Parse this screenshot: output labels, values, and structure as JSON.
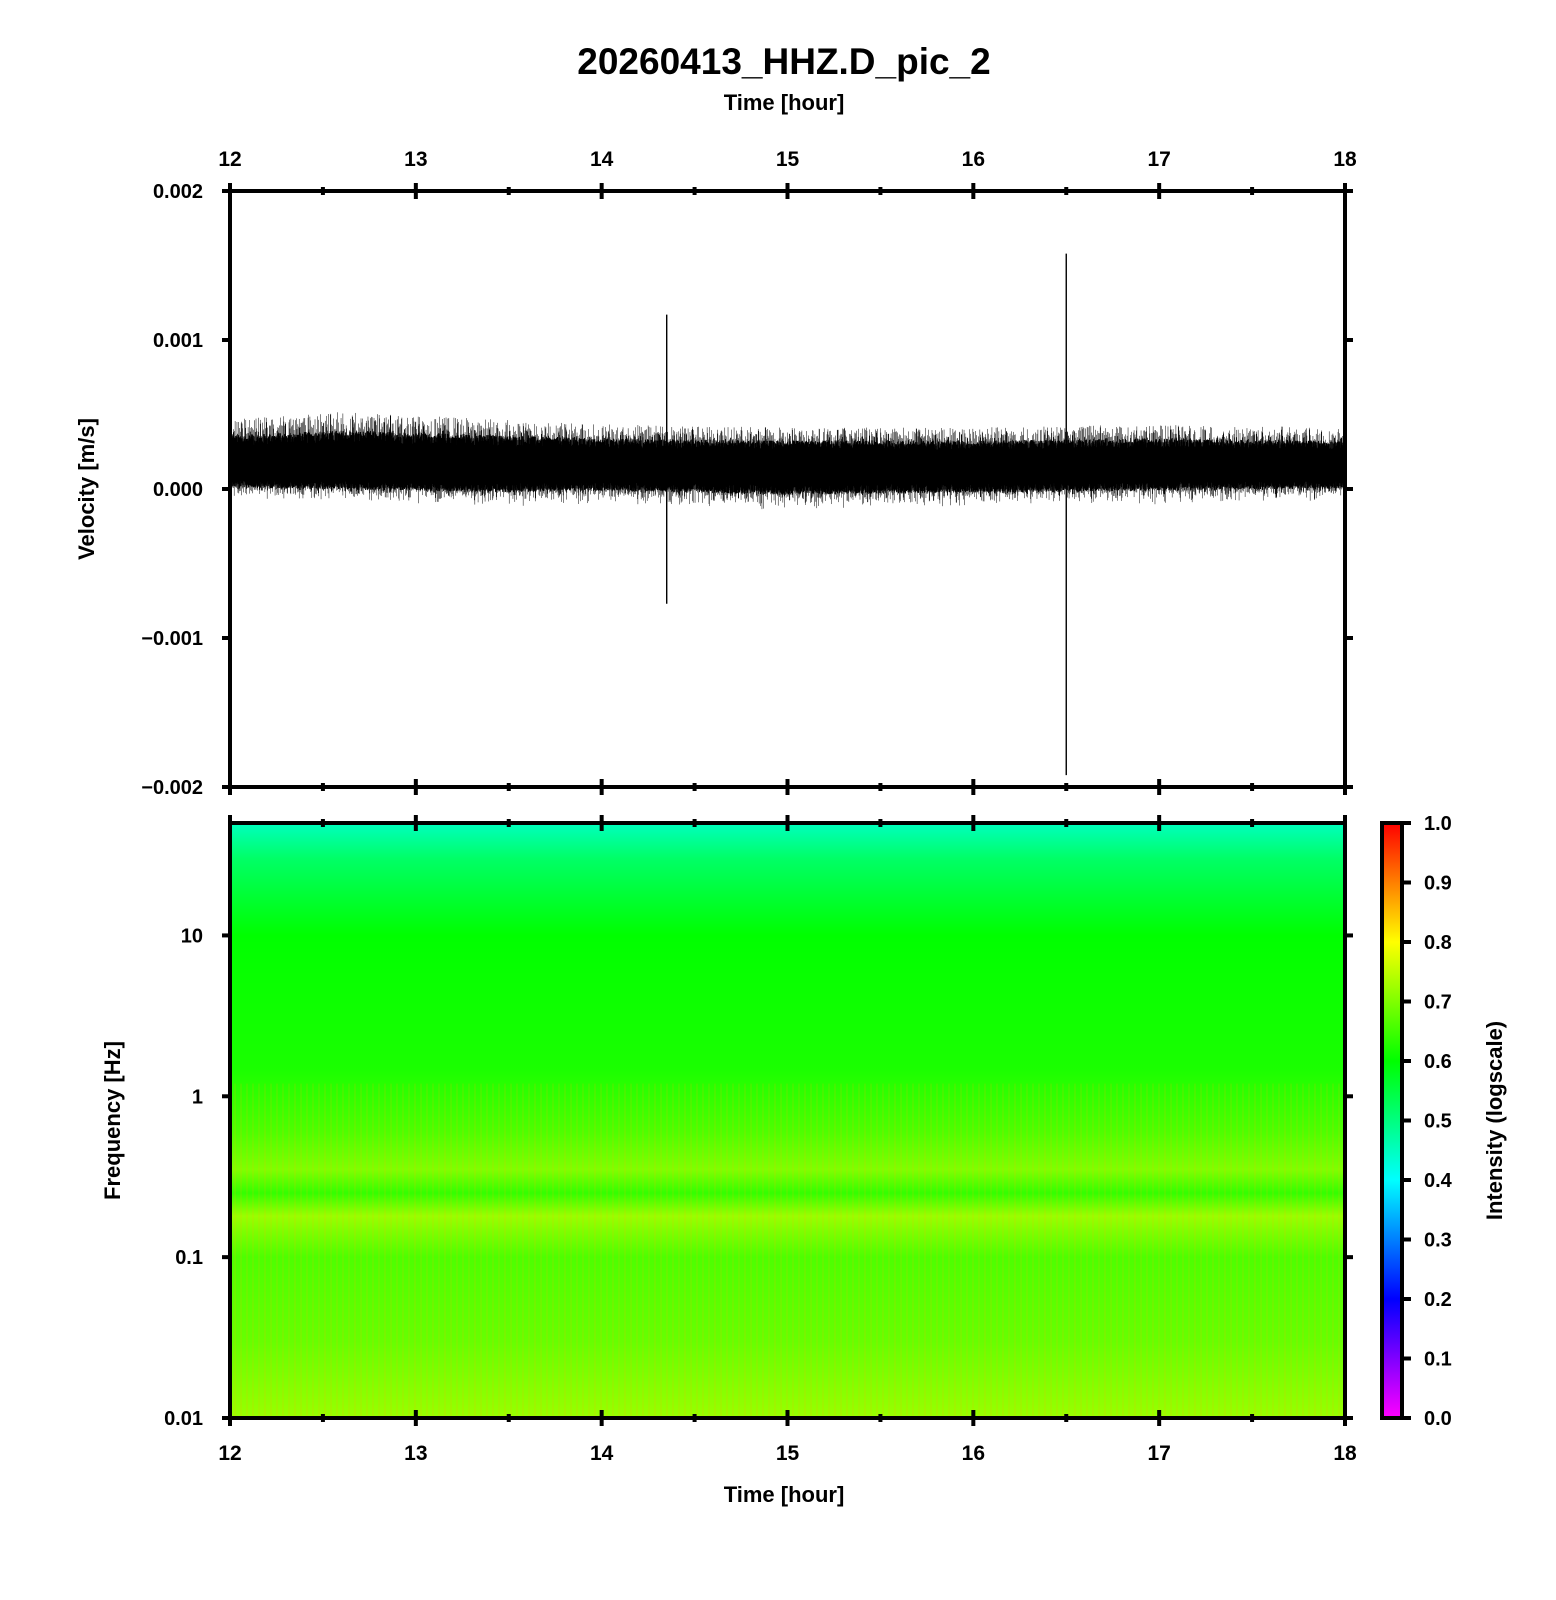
{
  "title": "20260413_HHZ.D_pic_2",
  "top_axis_label": "Time [hour]",
  "bottom_axis_label": "Time [hour]",
  "chart_data": [
    {
      "type": "line",
      "name": "seismogram",
      "ylabel": "Velocity [m/s]",
      "xlim": [
        12,
        18
      ],
      "ylim": [
        -0.002,
        0.002
      ],
      "x_ticks": [
        12,
        13,
        14,
        15,
        16,
        17,
        18
      ],
      "x_tick_labels": [
        "12",
        "13",
        "14",
        "15",
        "16",
        "17",
        "18"
      ],
      "y_ticks": [
        -0.002,
        -0.001,
        0.0,
        0.001,
        0.002
      ],
      "y_tick_labels": [
        "−0.002",
        "−0.001",
        "0.000",
        "0.001",
        "0.002"
      ],
      "baseline": 0.00015,
      "noise_envelope": [
        {
          "x": 12.0,
          "upper": 0.00045,
          "lower": -5e-05
        },
        {
          "x": 12.6,
          "upper": 0.0005,
          "lower": -7e-05
        },
        {
          "x": 13.5,
          "upper": 0.00045,
          "lower": -0.0001
        },
        {
          "x": 14.0,
          "upper": 0.00042,
          "lower": -8e-05
        },
        {
          "x": 15.0,
          "upper": 0.0004,
          "lower": -0.00012
        },
        {
          "x": 16.0,
          "upper": 0.0004,
          "lower": -0.0001
        },
        {
          "x": 17.0,
          "upper": 0.00042,
          "lower": -8e-05
        },
        {
          "x": 18.0,
          "upper": 0.0004,
          "lower": -6e-05
        }
      ],
      "spikes": [
        {
          "x": 14.35,
          "max": 0.00117,
          "min": -0.00077
        },
        {
          "x": 16.5,
          "max": 0.00158,
          "min": -0.00192
        }
      ]
    },
    {
      "type": "heatmap",
      "name": "spectrogram",
      "ylabel": "Frequency [Hz]",
      "xlabel": "Time [hour]",
      "xlim": [
        12,
        18
      ],
      "ylim": [
        0.01,
        50
      ],
      "y_scale": "log",
      "x_ticks": [
        12,
        13,
        14,
        15,
        16,
        17,
        18
      ],
      "x_tick_labels": [
        "12",
        "13",
        "14",
        "15",
        "16",
        "17",
        "18"
      ],
      "y_ticks": [
        0.01,
        0.1,
        1,
        10
      ],
      "y_tick_labels": [
        "0.01",
        "0.1",
        "1",
        "10"
      ],
      "intensity_profile": [
        {
          "freq": 50,
          "intensity": 0.45
        },
        {
          "freq": 30,
          "intensity": 0.52
        },
        {
          "freq": 10,
          "intensity": 0.6
        },
        {
          "freq": 1.5,
          "intensity": 0.62
        },
        {
          "freq": 0.6,
          "intensity": 0.66
        },
        {
          "freq": 0.35,
          "intensity": 0.7
        },
        {
          "freq": 0.25,
          "intensity": 0.64
        },
        {
          "freq": 0.18,
          "intensity": 0.72
        },
        {
          "freq": 0.1,
          "intensity": 0.66
        },
        {
          "freq": 0.03,
          "intensity": 0.68
        },
        {
          "freq": 0.01,
          "intensity": 0.72
        }
      ],
      "colorbar": {
        "label": "Intensity (logscale)",
        "range": [
          0.0,
          1.0
        ],
        "ticks": [
          0.0,
          0.1,
          0.2,
          0.3,
          0.4,
          0.5,
          0.6,
          0.7,
          0.8,
          0.9,
          1.0
        ],
        "tick_labels": [
          "0.0",
          "0.1",
          "0.2",
          "0.3",
          "0.4",
          "0.5",
          "0.6",
          "0.7",
          "0.8",
          "0.9",
          "1.0"
        ],
        "colors": [
          "#ff00ff",
          "#0000ff",
          "#00ffff",
          "#00ff00",
          "#ffff00",
          "#ff0000"
        ]
      }
    }
  ]
}
